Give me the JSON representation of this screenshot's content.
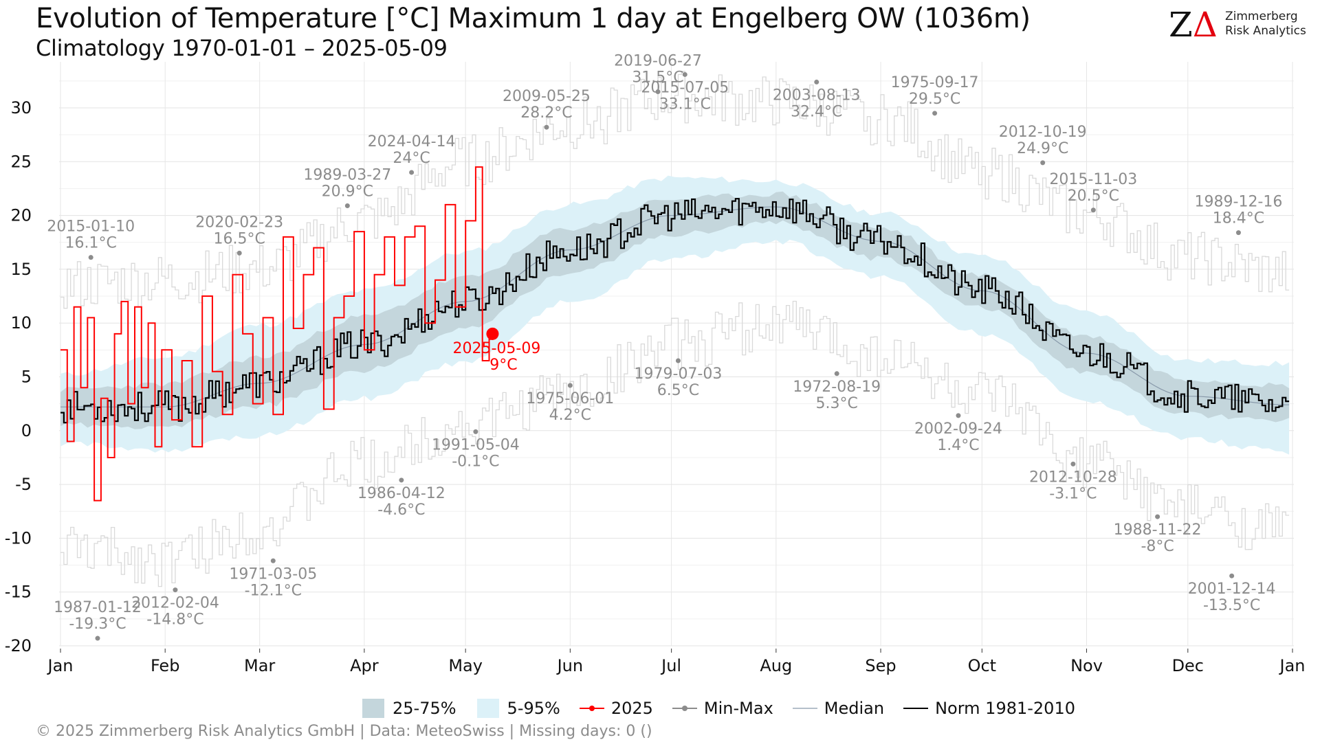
{
  "header": {
    "title": "Evolution of Temperature [°C] Maximum 1 day at Engelberg  OW (1036m)",
    "subtitle": "Climatology 1970-01-01 – 2025-05-09"
  },
  "logo": {
    "mark": "ZΔ",
    "line1": "Zimmerberg",
    "line2": "Risk Analytics"
  },
  "legend": {
    "items": [
      {
        "label": "25-75%",
        "kind": "band",
        "color": "#c4d6dc"
      },
      {
        "label": "5-95%",
        "kind": "band",
        "color": "#dcf1f8"
      },
      {
        "label": "2025",
        "kind": "point-line",
        "color": "#ff0000"
      },
      {
        "label": "Min-Max",
        "kind": "point-line",
        "color": "#8c8c8c"
      },
      {
        "label": "Median",
        "kind": "line",
        "color": "#8899aa"
      },
      {
        "label": "Norm 1981-2010",
        "kind": "line",
        "color": "#000000"
      }
    ]
  },
  "footer": {
    "text": "©  2025 Zimmerberg Risk Analytics GmbH | Data: MeteoSwiss | Missing days: 0 ()"
  },
  "chart_data": {
    "type": "line",
    "ylim": [
      -20,
      34
    ],
    "xlim": [
      1,
      365
    ],
    "yticks": [
      -20,
      -15,
      -10,
      -5,
      0,
      5,
      10,
      15,
      20,
      25,
      30
    ],
    "xticks": [
      {
        "label": "Jan",
        "day": 1
      },
      {
        "label": "Feb",
        "day": 32
      },
      {
        "label": "Mar",
        "day": 60
      },
      {
        "label": "Apr",
        "day": 91
      },
      {
        "label": "May",
        "day": 121
      },
      {
        "label": "Jun",
        "day": 152
      },
      {
        "label": "Jul",
        "day": 182
      },
      {
        "label": "Aug",
        "day": 213
      },
      {
        "label": "Sep",
        "day": 244
      },
      {
        "label": "Oct",
        "day": 274
      },
      {
        "label": "Nov",
        "day": 305
      },
      {
        "label": "Dec",
        "day": 335
      },
      {
        "label": "Jan",
        "day": 366
      }
    ],
    "colors": {
      "band_5_95": "#dcf1f8",
      "band_25_75": "#c4d6dc",
      "norm": "#000000",
      "median": "#8899aa",
      "year2025": "#ff0000",
      "minmax": "#8c8c8c",
      "minmax_line": "#d9d9d9"
    },
    "median_keypoints": {
      "day": [
        1,
        32,
        60,
        91,
        121,
        152,
        182,
        213,
        244,
        274,
        305,
        335,
        365
      ],
      "value": [
        2.2,
        2.2,
        4.4,
        8.0,
        12.0,
        16.8,
        20.0,
        20.8,
        17.6,
        13.0,
        7.2,
        3.2,
        2.4
      ]
    },
    "p25_keypoints": {
      "day": [
        1,
        32,
        60,
        91,
        121,
        152,
        182,
        213,
        244,
        274,
        305,
        335,
        365
      ],
      "value": [
        0.5,
        0.4,
        2.3,
        5.6,
        9.6,
        14.6,
        18.2,
        19.3,
        16.0,
        11.4,
        5.4,
        1.5,
        1.0
      ]
    },
    "p75_keypoints": {
      "day": [
        1,
        32,
        60,
        91,
        121,
        152,
        182,
        213,
        244,
        274,
        305,
        335,
        365
      ],
      "value": [
        3.8,
        4.3,
        6.8,
        10.6,
        14.2,
        18.8,
        21.5,
        22.0,
        18.8,
        14.4,
        8.8,
        4.8,
        4.2
      ]
    },
    "p05_keypoints": {
      "day": [
        1,
        32,
        60,
        91,
        121,
        152,
        182,
        213,
        244,
        274,
        305,
        335,
        365
      ],
      "value": [
        -1.2,
        -1.8,
        -0.5,
        3.0,
        6.4,
        12.0,
        16.0,
        17.6,
        14.2,
        9.0,
        2.8,
        -0.8,
        -2.0
      ]
    },
    "p95_keypoints": {
      "day": [
        1,
        32,
        60,
        91,
        121,
        152,
        182,
        213,
        244,
        274,
        305,
        335,
        365
      ],
      "value": [
        5.2,
        6.8,
        9.8,
        13.0,
        16.6,
        21.0,
        23.5,
        23.2,
        20.2,
        16.2,
        11.0,
        6.5,
        6.2
      ]
    },
    "max_keypoints": {
      "day": [
        1,
        32,
        60,
        91,
        121,
        152,
        182,
        213,
        244,
        274,
        305,
        335,
        365
      ],
      "value": [
        13.5,
        14.0,
        15.0,
        19.5,
        25.0,
        28.5,
        31.0,
        30.5,
        29.0,
        24.0,
        20.0,
        16.0,
        14.5
      ]
    },
    "min_keypoints": {
      "day": [
        1,
        32,
        60,
        91,
        121,
        152,
        182,
        213,
        244,
        274,
        305,
        335,
        365
      ],
      "value": [
        -11.0,
        -12.0,
        -9.0,
        -3.0,
        0.5,
        3.5,
        8.0,
        10.0,
        7.0,
        3.0,
        -3.0,
        -7.5,
        -9.5
      ]
    },
    "year_2025": {
      "day": [
        1,
        3,
        5,
        7,
        9,
        11,
        13,
        15,
        17,
        19,
        21,
        23,
        25,
        27,
        29,
        31,
        34,
        37,
        40,
        43,
        46,
        49,
        52,
        55,
        58,
        61,
        64,
        67,
        70,
        73,
        76,
        79,
        82,
        85,
        88,
        91,
        94,
        97,
        100,
        103,
        106,
        109,
        112,
        115,
        118,
        121,
        124,
        126,
        128,
        129
      ],
      "value": [
        7.5,
        -1.0,
        11.5,
        4.0,
        10.5,
        -6.5,
        3.0,
        -2.5,
        9.0,
        12.0,
        2.5,
        11.5,
        4.0,
        10.0,
        -1.5,
        7.5,
        1.0,
        6.5,
        -1.5,
        12.5,
        5.5,
        1.5,
        14.5,
        9.0,
        2.5,
        10.5,
        1.5,
        18.0,
        9.5,
        14.5,
        17.0,
        2.0,
        10.5,
        12.5,
        18.5,
        7.5,
        14.5,
        18.0,
        13.5,
        18.0,
        19.0,
        10.0,
        14.0,
        21.0,
        11.5,
        19.5,
        24.5,
        6.5,
        8.5,
        9.0
      ]
    },
    "current_point": {
      "date": "2025-05-09",
      "day": 129,
      "value": 9.0,
      "label_date": "2025-05-09",
      "label_value": "9°C"
    },
    "extreme_labels": [
      {
        "date": "2015-01-10",
        "value": "16.1°C",
        "day": 10,
        "y": 16.1,
        "pos": "above"
      },
      {
        "date": "2020-02-23",
        "value": "16.5°C",
        "day": 54,
        "y": 16.5,
        "pos": "above"
      },
      {
        "date": "1989-03-27",
        "value": "20.9°C",
        "day": 86,
        "y": 20.9,
        "pos": "above"
      },
      {
        "date": "2024-04-14",
        "value": "24°C",
        "day": 105,
        "y": 24.0,
        "pos": "above"
      },
      {
        "date": "2009-05-25",
        "value": "28.2°C",
        "day": 145,
        "y": 28.2,
        "pos": "above"
      },
      {
        "date": "2019-06-27",
        "value": "31.5°C",
        "day": 178,
        "y": 31.5,
        "pos": "above"
      },
      {
        "date": "2015-07-05",
        "value": "33.1°C",
        "day": 186,
        "y": 33.1,
        "pos": "below"
      },
      {
        "date": "2003-08-13",
        "value": "32.4°C",
        "day": 225,
        "y": 32.4,
        "pos": "below"
      },
      {
        "date": "1975-09-17",
        "value": "29.5°C",
        "day": 260,
        "y": 29.5,
        "pos": "above"
      },
      {
        "date": "2012-10-19",
        "value": "24.9°C",
        "day": 292,
        "y": 24.9,
        "pos": "above"
      },
      {
        "date": "2015-11-03",
        "value": "20.5°C",
        "day": 307,
        "y": 20.5,
        "pos": "above"
      },
      {
        "date": "1989-12-16",
        "value": "18.4°C",
        "day": 350,
        "y": 18.4,
        "pos": "above"
      },
      {
        "date": "1987-01-12",
        "value": "-19.3°C",
        "day": 12,
        "y": -19.3,
        "pos": "above"
      },
      {
        "date": "2012-02-04",
        "value": "-14.8°C",
        "day": 35,
        "y": -14.8,
        "pos": "below"
      },
      {
        "date": "1971-03-05",
        "value": "-12.1°C",
        "day": 64,
        "y": -12.1,
        "pos": "below"
      },
      {
        "date": "1986-04-12",
        "value": "-4.6°C",
        "day": 102,
        "y": -4.6,
        "pos": "below"
      },
      {
        "date": "1991-05-04",
        "value": "-0.1°C",
        "day": 124,
        "y": -0.1,
        "pos": "below"
      },
      {
        "date": "1975-06-01",
        "value": "4.2°C",
        "day": 152,
        "y": 4.2,
        "pos": "below"
      },
      {
        "date": "1979-07-03",
        "value": "6.5°C",
        "day": 184,
        "y": 6.5,
        "pos": "below"
      },
      {
        "date": "1972-08-19",
        "value": "5.3°C",
        "day": 231,
        "y": 5.3,
        "pos": "below"
      },
      {
        "date": "2002-09-24",
        "value": "1.4°C",
        "day": 267,
        "y": 1.4,
        "pos": "below"
      },
      {
        "date": "2012-10-28",
        "value": "-3.1°C",
        "day": 301,
        "y": -3.1,
        "pos": "below"
      },
      {
        "date": "1988-11-22",
        "value": "-8°C",
        "day": 326,
        "y": -8.0,
        "pos": "below"
      },
      {
        "date": "2001-12-14",
        "value": "-13.5°C",
        "day": 348,
        "y": -13.5,
        "pos": "below"
      }
    ]
  }
}
